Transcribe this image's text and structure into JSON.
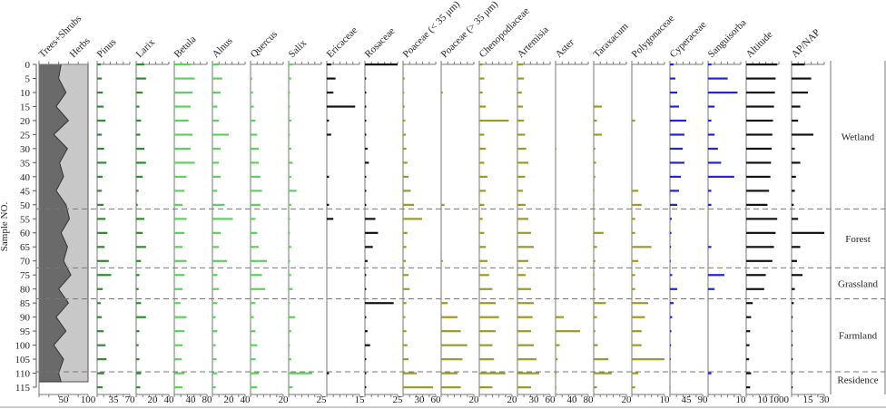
{
  "chart_data": {
    "type": "bar",
    "ylabel": "Sample NO.",
    "ylim": [
      0,
      115
    ],
    "y_ticks": [
      "0",
      "5",
      "10",
      "15",
      "20",
      "25",
      "30",
      "35",
      "40",
      "45",
      "50",
      "55",
      "60",
      "65",
      "70",
      "75",
      "80",
      "85",
      "90",
      "95",
      "100",
      "105",
      "110",
      "115"
    ],
    "samples": [
      0,
      5,
      10,
      15,
      20,
      25,
      30,
      35,
      40,
      45,
      50,
      55,
      60,
      65,
      70,
      75,
      80,
      85,
      90,
      95,
      100,
      105,
      110,
      115
    ],
    "cumulative": {
      "labels": [
        "Trees+Shrubs",
        "Herbs"
      ],
      "tick_labels": [
        "50",
        "100"
      ],
      "xlim": [
        0,
        100
      ],
      "trees_shrubs": [
        45,
        40,
        55,
        35,
        60,
        30,
        58,
        42,
        50,
        35,
        55,
        62,
        45,
        58,
        50,
        65,
        40,
        60,
        35,
        55,
        30,
        50,
        40,
        45
      ]
    },
    "series": [
      {
        "name": "Pinus",
        "xlim": [
          0,
          70
        ],
        "tick_labels": [
          "35",
          "70"
        ],
        "color": "#2e8b2e",
        "values": [
          8,
          10,
          12,
          14,
          18,
          10,
          15,
          20,
          12,
          10,
          14,
          18,
          22,
          16,
          25,
          30,
          12,
          8,
          10,
          14,
          18,
          20,
          15,
          12
        ]
      },
      {
        "name": "Larix",
        "xlim": [
          0,
          40
        ],
        "tick_labels": [
          "20",
          "40"
        ],
        "color": "#2e8b2e",
        "values": [
          10,
          12,
          8,
          4,
          6,
          5,
          10,
          12,
          8,
          3,
          2,
          10,
          8,
          12,
          6,
          4,
          3,
          6,
          12,
          4,
          3,
          4,
          6,
          5
        ]
      },
      {
        "name": "Betula",
        "xlim": [
          0,
          80
        ],
        "tick_labels": [
          "40",
          "80"
        ],
        "color": "#5fcf5f",
        "values": [
          40,
          50,
          45,
          40,
          35,
          45,
          40,
          50,
          30,
          25,
          20,
          30,
          25,
          20,
          30,
          25,
          20,
          15,
          30,
          25,
          20,
          18,
          25,
          20
        ]
      },
      {
        "name": "Alnus",
        "xlim": [
          0,
          40
        ],
        "tick_labels": [
          "20",
          "40"
        ],
        "color": "#5fcf5f",
        "values": [
          8,
          12,
          10,
          6,
          8,
          20,
          10,
          8,
          10,
          6,
          15,
          25,
          10,
          8,
          18,
          6,
          8,
          6,
          4,
          6,
          4,
          5,
          6,
          4
        ]
      },
      {
        "name": "Quercus",
        "xlim": [
          0,
          40
        ],
        "tick_labels": [
          "20"
        ],
        "color": "#5fcf5f",
        "values": [
          0,
          2,
          3,
          4,
          6,
          8,
          10,
          10,
          12,
          14,
          12,
          6,
          8,
          10,
          20,
          14,
          18,
          6,
          4,
          6,
          8,
          6,
          10,
          8
        ]
      },
      {
        "name": "Salix",
        "xlim": [
          0,
          25
        ],
        "tick_labels": [
          "25"
        ],
        "color": "#5fcf5f",
        "values": [
          3,
          2,
          1,
          1,
          2,
          1,
          2,
          3,
          2,
          6,
          2,
          1,
          1,
          2,
          1,
          2,
          3,
          1,
          5,
          2,
          1,
          2,
          18,
          3
        ]
      },
      {
        "name": "Ericaceae",
        "xlim": [
          0,
          15
        ],
        "tick_labels": [
          "15"
        ],
        "color": "#111111",
        "values": [
          2,
          4,
          3,
          13,
          1,
          2,
          0,
          0,
          1,
          0,
          1,
          3,
          0,
          0,
          0,
          0,
          0,
          0,
          0,
          0,
          0,
          0,
          1,
          0
        ]
      },
      {
        "name": "Rosaceae",
        "xlim": [
          0,
          25
        ],
        "tick_labels": [
          "25"
        ],
        "color": "#111111",
        "values": [
          25,
          1,
          1,
          1,
          1,
          1,
          2,
          3,
          1,
          1,
          1,
          8,
          10,
          6,
          2,
          1,
          1,
          22,
          1,
          2,
          4,
          1,
          1,
          1
        ]
      },
      {
        "name": "Poaceae (< 35 μm)",
        "xlim": [
          0,
          60
        ],
        "tick_labels": [
          "30",
          "60"
        ],
        "color": "#9a9a2a",
        "values": [
          2,
          3,
          2,
          3,
          4,
          5,
          6,
          8,
          10,
          14,
          20,
          35,
          8,
          6,
          5,
          10,
          12,
          6,
          4,
          6,
          8,
          10,
          25,
          55
        ]
      },
      {
        "name": "Poaceae (> 35 μm)",
        "xlim": [
          0,
          20
        ],
        "tick_labels": [
          "20"
        ],
        "color": "#9a9a2a",
        "values": [
          0,
          0,
          1,
          0,
          0,
          0,
          0,
          0,
          0,
          0,
          2,
          0,
          0,
          0,
          1,
          0,
          0,
          4,
          10,
          12,
          16,
          13,
          10,
          12
        ]
      },
      {
        "name": "Chenopodiaceae",
        "xlim": [
          0,
          20
        ],
        "tick_labels": [
          "20"
        ],
        "color": "#9a9a2a",
        "values": [
          2,
          3,
          2,
          4,
          18,
          3,
          4,
          3,
          5,
          4,
          3,
          2,
          3,
          4,
          5,
          6,
          8,
          10,
          12,
          10,
          8,
          9,
          16,
          8
        ]
      },
      {
        "name": "Artemisia",
        "xlim": [
          0,
          60
        ],
        "tick_labels": [
          "30",
          "60"
        ],
        "color": "#9a9a2a",
        "values": [
          10,
          12,
          8,
          10,
          12,
          14,
          16,
          20,
          14,
          10,
          15,
          20,
          25,
          30,
          20,
          15,
          25,
          30,
          28,
          25,
          30,
          35,
          40,
          25
        ]
      },
      {
        "name": "Aster",
        "xlim": [
          0,
          80
        ],
        "tick_labels": [
          "40",
          "80"
        ],
        "color": "#9a9a2a",
        "values": [
          0,
          0,
          0,
          0,
          0,
          0,
          2,
          0,
          0,
          0,
          0,
          0,
          0,
          0,
          0,
          0,
          0,
          0,
          20,
          60,
          10,
          5,
          2,
          2
        ]
      },
      {
        "name": "Taraxacum",
        "xlim": [
          0,
          40
        ],
        "tick_labels": [
          "20"
        ],
        "color": "#9a9a2a",
        "values": [
          0,
          0,
          0,
          10,
          4,
          10,
          2,
          3,
          2,
          1,
          1,
          2,
          12,
          4,
          2,
          1,
          2,
          15,
          4,
          2,
          5,
          18,
          22,
          4
        ]
      },
      {
        "name": "Polygonaceae",
        "xlim": [
          0,
          10
        ],
        "tick_labels": [
          "10"
        ],
        "color": "#9a9a2a",
        "values": [
          0,
          0,
          0,
          0,
          1,
          0,
          0,
          0,
          0,
          2,
          3,
          1,
          1,
          6,
          2,
          1,
          1,
          5,
          4,
          3,
          3,
          10,
          2,
          1
        ]
      },
      {
        "name": "Cyperaceae",
        "xlim": [
          0,
          90
        ],
        "tick_labels": [
          "45",
          "90"
        ],
        "color": "#2323d6",
        "values": [
          10,
          15,
          20,
          25,
          45,
          40,
          35,
          40,
          30,
          25,
          20,
          5,
          4,
          3,
          2,
          6,
          20,
          10,
          6,
          4,
          3,
          2,
          1,
          1
        ]
      },
      {
        "name": "Sanguisorba",
        "xlim": [
          0,
          10
        ],
        "tick_labels": [
          "10"
        ],
        "color": "#2323d6",
        "values": [
          1,
          6,
          9,
          2,
          1,
          2,
          3,
          4,
          8,
          1,
          1,
          0,
          0,
          1,
          0,
          5,
          2,
          0,
          0,
          0,
          0,
          0,
          1,
          0
        ]
      },
      {
        "name": "Altitude",
        "xlim": [
          0,
          1000
        ],
        "tick_labels": [
          "10",
          "1000"
        ],
        "color": "#111111",
        "values": [
          950,
          900,
          880,
          850,
          820,
          800,
          780,
          760,
          740,
          700,
          650,
          950,
          900,
          850,
          800,
          600,
          550,
          200,
          150,
          120,
          100,
          90,
          150,
          120
        ]
      },
      {
        "name": "AP/NAP",
        "xlim": [
          0,
          30
        ],
        "tick_labels": [
          "15",
          "30"
        ],
        "color": "#111111",
        "values": [
          12,
          18,
          15,
          8,
          6,
          20,
          3,
          8,
          4,
          3,
          2,
          6,
          30,
          8,
          5,
          10,
          3,
          2,
          1,
          1,
          1,
          1,
          1,
          1
        ]
      }
    ],
    "zones": [
      {
        "name": "Wetland",
        "from": 0,
        "to": 51.5
      },
      {
        "name": "Forest",
        "from": 51.5,
        "to": 72.5
      },
      {
        "name": "Grassland",
        "from": 72.5,
        "to": 83.5
      },
      {
        "name": "Farmland",
        "from": 83.5,
        "to": 109.5
      },
      {
        "name": "Residence",
        "from": 109.5,
        "to": 115
      }
    ]
  }
}
